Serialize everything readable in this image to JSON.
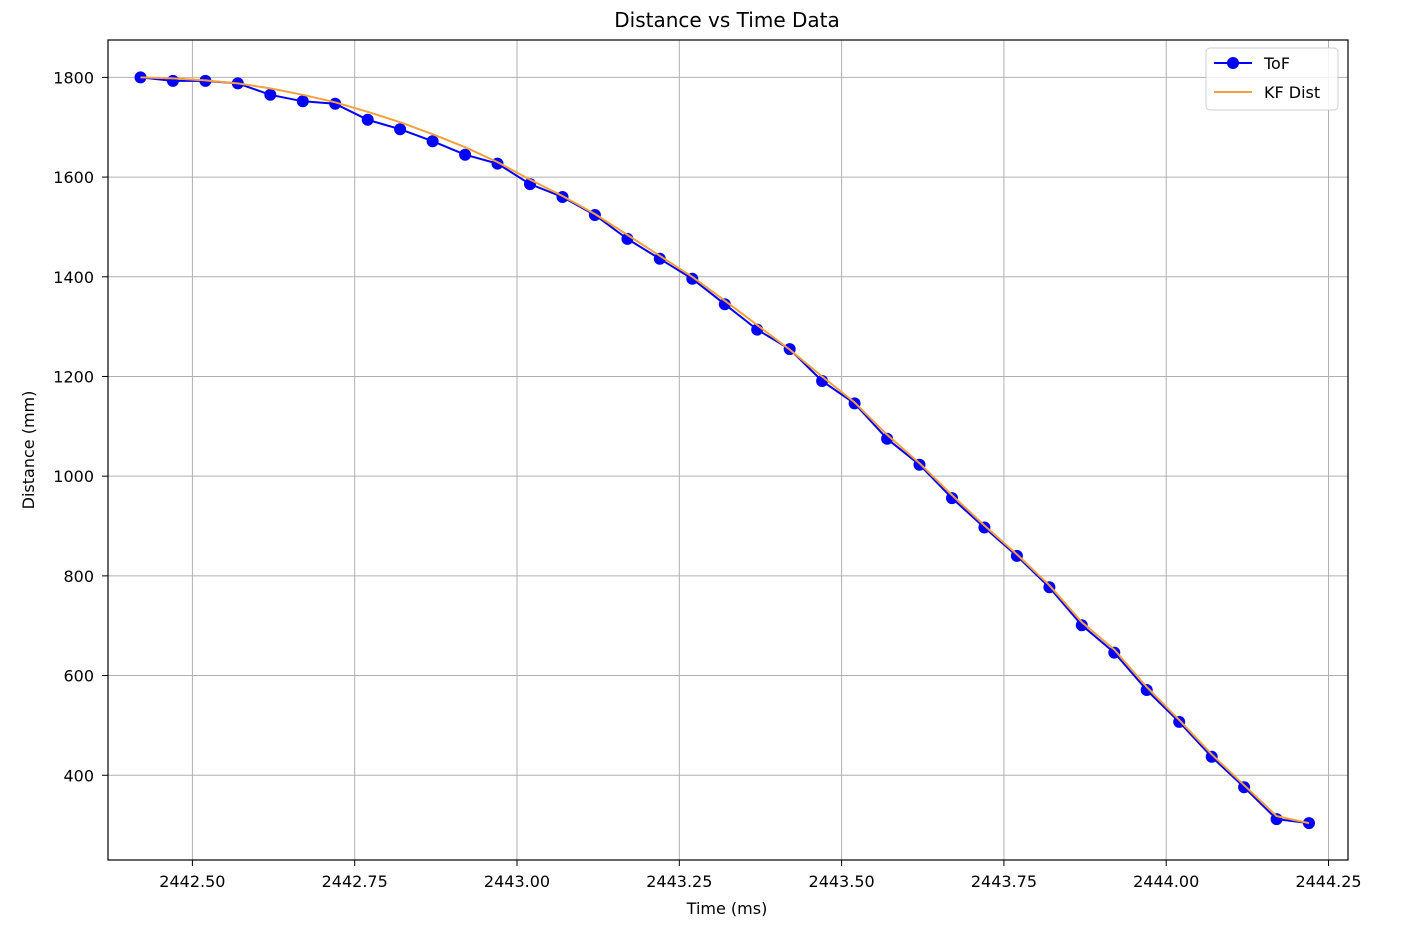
{
  "chart_data": {
    "type": "line",
    "title": "Distance vs Time Data",
    "xlabel": "Time (ms)",
    "ylabel": "Distance (mm)",
    "xlim": [
      2442.37,
      2444.28
    ],
    "ylim": [
      230,
      1875
    ],
    "xticks": [
      2442.5,
      2442.75,
      2443.0,
      2443.25,
      2443.5,
      2443.75,
      2444.0,
      2444.25
    ],
    "xtick_labels": [
      "2442.50",
      "2442.75",
      "2443.00",
      "2443.25",
      "2443.50",
      "2443.75",
      "2444.00",
      "2444.25"
    ],
    "yticks": [
      400,
      600,
      800,
      1000,
      1200,
      1400,
      1600,
      1800
    ],
    "ytick_labels": [
      "400",
      "600",
      "800",
      "1000",
      "1200",
      "1400",
      "1600",
      "1800"
    ],
    "grid": true,
    "legend_position": "top-right",
    "series": [
      {
        "name": "ToF",
        "color": "#0000ff",
        "marker": "circle",
        "x": [
          2442.42,
          2442.47,
          2442.52,
          2442.57,
          2442.62,
          2442.67,
          2442.72,
          2442.77,
          2442.82,
          2442.87,
          2442.92,
          2442.97,
          2443.02,
          2443.07,
          2443.12,
          2443.17,
          2443.22,
          2443.27,
          2443.32,
          2443.37,
          2443.42,
          2443.47,
          2443.52,
          2443.57,
          2443.62,
          2443.67,
          2443.72,
          2443.77,
          2443.82,
          2443.87,
          2443.92,
          2443.97,
          2444.02,
          2444.07,
          2444.12,
          2444.17,
          2444.22
        ],
        "y": [
          1800,
          1793,
          1793,
          1788,
          1765,
          1752,
          1747,
          1715,
          1696,
          1672,
          1645,
          1627,
          1586,
          1560,
          1524,
          1476,
          1436,
          1396,
          1345,
          1294,
          1255,
          1191,
          1146,
          1075,
          1023,
          956,
          897,
          840,
          777,
          701,
          646,
          571,
          507,
          437,
          376,
          312,
          304
        ]
      },
      {
        "name": "KF Dist",
        "color": "#f5a03c",
        "marker": "none",
        "x": [
          2442.42,
          2442.47,
          2442.52,
          2442.57,
          2442.62,
          2442.67,
          2442.72,
          2442.77,
          2442.82,
          2442.87,
          2442.92,
          2442.97,
          2443.02,
          2443.07,
          2443.12,
          2443.17,
          2443.22,
          2443.27,
          2443.32,
          2443.37,
          2443.42,
          2443.47,
          2443.52,
          2443.57,
          2443.62,
          2443.67,
          2443.72,
          2443.77,
          2443.82,
          2443.87,
          2443.92,
          2443.97,
          2444.02,
          2444.07,
          2444.12,
          2444.17,
          2444.22
        ],
        "y": [
          1800,
          1798,
          1794,
          1788,
          1778,
          1765,
          1750,
          1731,
          1710,
          1686,
          1660,
          1630,
          1595,
          1562,
          1526,
          1484,
          1442,
          1400,
          1352,
          1303,
          1254,
          1200,
          1148,
          1083,
          1026,
          962,
          901,
          843,
          781,
          707,
          652,
          577,
          511,
          442,
          380,
          318,
          304
        ]
      }
    ]
  }
}
